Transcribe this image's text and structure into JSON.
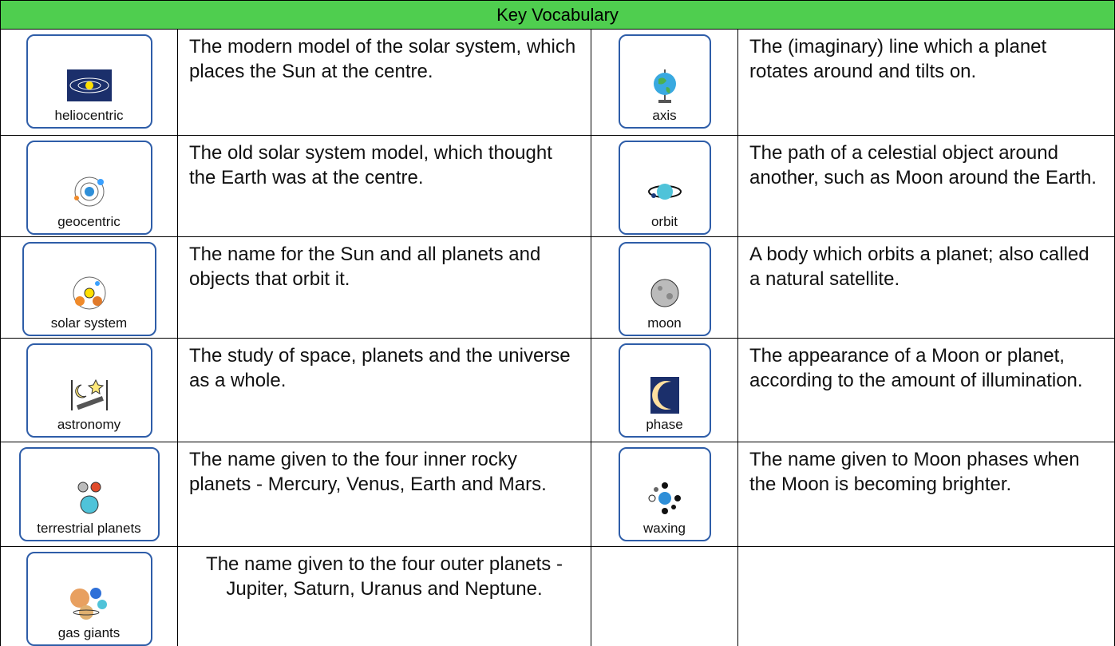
{
  "header": {
    "title": "Key Vocabulary"
  },
  "table": {
    "rows": [
      [
        {
          "word": "heliocentric",
          "definition": "The modern model of the solar system, which places the Sun at the centre."
        },
        {
          "word": "axis",
          "definition": "The (imaginary) line which a planet rotates around and tilts on."
        }
      ],
      [
        {
          "word": "geocentric",
          "definition": "The old solar system model, which thought the Earth was at the centre."
        },
        {
          "word": "orbit",
          "definition": "The path of a celestial object around another, such as Moon around the Earth."
        }
      ],
      [
        {
          "word": "solar system",
          "definition": "The name for the Sun and all planets and objects that orbit it."
        },
        {
          "word": "moon",
          "definition": "A body which orbits a planet; also called a natural satellite."
        }
      ],
      [
        {
          "word": "astronomy",
          "definition": "The study of space, planets and the universe as a whole."
        },
        {
          "word": "phase",
          "definition": "The appearance of a Moon or planet, according to the amount of illumination."
        }
      ],
      [
        {
          "word": "terrestrial planets",
          "definition": "The name given to the four inner rocky planets - Mercury, Venus, Earth and Mars."
        },
        {
          "word": "waxing",
          "definition": "The name given to Moon phases when the Moon is becoming brighter."
        }
      ],
      [
        {
          "word": "gas giants",
          "definition": "The name given to the four outer planets - Jupiter, Saturn, Uranus and Neptune."
        }
      ]
    ]
  }
}
